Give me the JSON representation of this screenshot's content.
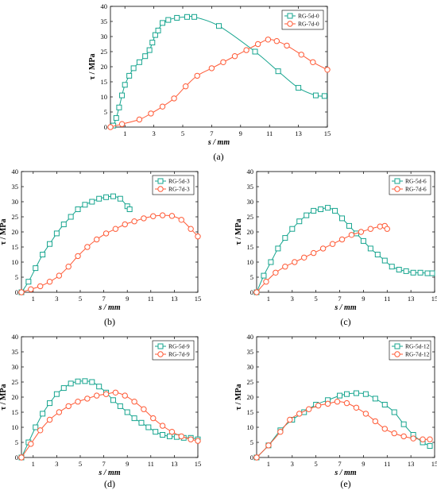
{
  "colors": {
    "green": "#17a58f",
    "red": "#ff5a36",
    "axis": "#000000"
  },
  "chart_data": [
    {
      "type": "line",
      "panel_label": "(a)",
      "xlabel": "s / mm",
      "ylabel": "τ / MPa",
      "xlim": [
        0,
        15
      ],
      "ylim": [
        0,
        40
      ],
      "xticks": [
        1,
        3,
        5,
        7,
        9,
        11,
        13,
        15
      ],
      "yticks": [
        0,
        5,
        10,
        15,
        20,
        25,
        30,
        35,
        40
      ],
      "legend_position": "top-right",
      "grid": false,
      "series": [
        {
          "name": "RG-5d-0",
          "marker": "square",
          "color": "#17a58f",
          "points": [
            [
              0.2,
              0.5
            ],
            [
              0.4,
              3
            ],
            [
              0.6,
              6.5
            ],
            [
              0.8,
              10.5
            ],
            [
              1.0,
              14
            ],
            [
              1.3,
              17
            ],
            [
              1.6,
              19.5
            ],
            [
              2.0,
              21.5
            ],
            [
              2.4,
              23.5
            ],
            [
              2.7,
              25.5
            ],
            [
              2.9,
              28
            ],
            [
              3.1,
              30.5
            ],
            [
              3.3,
              32
            ],
            [
              3.6,
              34.5
            ],
            [
              4.0,
              35.5
            ],
            [
              4.6,
              36.2
            ],
            [
              5.3,
              36.5
            ],
            [
              5.8,
              36.5
            ],
            [
              7.5,
              33.5
            ],
            [
              10.0,
              25
            ],
            [
              11.6,
              18.5
            ],
            [
              13.0,
              13
            ],
            [
              14.2,
              10.5
            ],
            [
              14.8,
              10.3
            ]
          ]
        },
        {
          "name": "RG-7d-0",
          "marker": "circle",
          "color": "#ff5a36",
          "points": [
            [
              0,
              0
            ],
            [
              0.8,
              1
            ],
            [
              2.0,
              2.5
            ],
            [
              2.8,
              4.5
            ],
            [
              3.6,
              6.8
            ],
            [
              4.4,
              9.5
            ],
            [
              5.2,
              13.5
            ],
            [
              6.0,
              17
            ],
            [
              7.0,
              19.5
            ],
            [
              7.8,
              21.5
            ],
            [
              8.6,
              23.5
            ],
            [
              9.4,
              25.5
            ],
            [
              10.2,
              27.5
            ],
            [
              10.9,
              29
            ],
            [
              11.5,
              28.5
            ],
            [
              12.2,
              27
            ],
            [
              13.2,
              24
            ],
            [
              14.0,
              21.5
            ],
            [
              15.0,
              19
            ]
          ]
        }
      ]
    },
    {
      "type": "line",
      "panel_label": "(b)",
      "xlabel": "s / mm",
      "ylabel": "τ / MPa",
      "xlim": [
        0,
        15
      ],
      "ylim": [
        0,
        40
      ],
      "xticks": [
        1,
        3,
        5,
        7,
        9,
        11,
        13,
        15
      ],
      "yticks": [
        0,
        5,
        10,
        15,
        20,
        25,
        30,
        35,
        40
      ],
      "legend_position": "top-right",
      "grid": false,
      "series": [
        {
          "name": "RG-5d-3",
          "marker": "square",
          "color": "#17a58f",
          "points": [
            [
              0,
              0
            ],
            [
              0.6,
              3.5
            ],
            [
              1.2,
              8
            ],
            [
              1.8,
              12.5
            ],
            [
              2.4,
              16
            ],
            [
              3.0,
              19.5
            ],
            [
              3.6,
              22.5
            ],
            [
              4.2,
              25
            ],
            [
              4.8,
              27.5
            ],
            [
              5.4,
              29
            ],
            [
              6.0,
              30
            ],
            [
              6.6,
              31
            ],
            [
              7.2,
              31.5
            ],
            [
              7.8,
              31.8
            ],
            [
              8.4,
              31
            ],
            [
              9.0,
              28.5
            ],
            [
              9.2,
              27.5
            ]
          ]
        },
        {
          "name": "RG-7d-3",
          "marker": "circle",
          "color": "#ff5a36",
          "points": [
            [
              0,
              0
            ],
            [
              0.8,
              1
            ],
            [
              1.6,
              2
            ],
            [
              2.4,
              3.5
            ],
            [
              3.2,
              5.5
            ],
            [
              4.0,
              8.5
            ],
            [
              4.8,
              12
            ],
            [
              5.6,
              15
            ],
            [
              6.4,
              17.5
            ],
            [
              7.2,
              19.5
            ],
            [
              8.0,
              21
            ],
            [
              8.8,
              22.5
            ],
            [
              9.6,
              23.5
            ],
            [
              10.4,
              24.5
            ],
            [
              11.2,
              25.2
            ],
            [
              12.0,
              25.5
            ],
            [
              12.8,
              25.3
            ],
            [
              13.6,
              24
            ],
            [
              14.4,
              21
            ],
            [
              15.0,
              18.5
            ]
          ]
        }
      ]
    },
    {
      "type": "line",
      "panel_label": "(c)",
      "xlabel": "s / mm",
      "ylabel": "τ / MPa",
      "xlim": [
        0,
        15
      ],
      "ylim": [
        0,
        40
      ],
      "xticks": [
        1,
        3,
        5,
        7,
        9,
        11,
        13,
        15
      ],
      "yticks": [
        0,
        5,
        10,
        15,
        20,
        25,
        30,
        35,
        40
      ],
      "legend_position": "top-right",
      "grid": false,
      "series": [
        {
          "name": "RG-5d-6",
          "marker": "square",
          "color": "#17a58f",
          "points": [
            [
              0,
              0
            ],
            [
              0.6,
              5.5
            ],
            [
              1.2,
              10
            ],
            [
              1.8,
              14.5
            ],
            [
              2.4,
              18
            ],
            [
              3.0,
              21
            ],
            [
              3.6,
              23.5
            ],
            [
              4.2,
              25.5
            ],
            [
              4.8,
              27
            ],
            [
              5.4,
              27.5
            ],
            [
              6.0,
              28
            ],
            [
              6.6,
              27
            ],
            [
              7.2,
              24.5
            ],
            [
              7.8,
              22
            ],
            [
              8.4,
              19.5
            ],
            [
              9.0,
              17
            ],
            [
              9.6,
              14.5
            ],
            [
              10.2,
              12.5
            ],
            [
              10.8,
              10.5
            ],
            [
              11.4,
              8.5
            ],
            [
              12.0,
              7.5
            ],
            [
              12.6,
              7
            ],
            [
              13.2,
              6.5
            ],
            [
              13.8,
              6.5
            ],
            [
              14.4,
              6.3
            ],
            [
              14.8,
              6.3
            ]
          ]
        },
        {
          "name": "RG-7d-6",
          "marker": "circle",
          "color": "#ff5a36",
          "points": [
            [
              0,
              0
            ],
            [
              0.8,
              3.5
            ],
            [
              1.6,
              6.5
            ],
            [
              2.4,
              8.5
            ],
            [
              3.2,
              10
            ],
            [
              4.0,
              11.5
            ],
            [
              4.8,
              13
            ],
            [
              5.6,
              14.5
            ],
            [
              6.4,
              16
            ],
            [
              7.2,
              17.5
            ],
            [
              8.0,
              19
            ],
            [
              8.8,
              20
            ],
            [
              9.6,
              21
            ],
            [
              10.4,
              21.8
            ],
            [
              10.8,
              22
            ],
            [
              11.0,
              21
            ]
          ]
        }
      ]
    },
    {
      "type": "line",
      "panel_label": "(d)",
      "xlabel": "s / mm",
      "ylabel": "τ / MPa",
      "xlim": [
        0,
        15
      ],
      "ylim": [
        0,
        40
      ],
      "xticks": [
        1,
        3,
        5,
        7,
        9,
        11,
        13,
        15
      ],
      "yticks": [
        0,
        5,
        10,
        15,
        20,
        25,
        30,
        35,
        40
      ],
      "legend_position": "top-right",
      "grid": false,
      "series": [
        {
          "name": "RG-5d-9",
          "marker": "square",
          "color": "#17a58f",
          "points": [
            [
              0,
              0
            ],
            [
              0.6,
              5
            ],
            [
              1.2,
              10
            ],
            [
              1.8,
              14.5
            ],
            [
              2.4,
              18
            ],
            [
              3.0,
              21
            ],
            [
              3.6,
              23
            ],
            [
              4.2,
              24.5
            ],
            [
              4.8,
              25.2
            ],
            [
              5.4,
              25.3
            ],
            [
              6.0,
              25
            ],
            [
              6.6,
              23.5
            ],
            [
              7.2,
              21.5
            ],
            [
              7.8,
              19
            ],
            [
              8.4,
              17
            ],
            [
              9.0,
              15
            ],
            [
              9.6,
              13
            ],
            [
              10.2,
              11.5
            ],
            [
              10.8,
              10
            ],
            [
              11.4,
              8.5
            ],
            [
              12.0,
              7.5
            ],
            [
              12.6,
              7
            ],
            [
              13.2,
              6.8
            ],
            [
              13.8,
              6.5
            ],
            [
              14.4,
              6.5
            ],
            [
              15.0,
              6
            ]
          ]
        },
        {
          "name": "RG-7d-9",
          "marker": "circle",
          "color": "#ff5a36",
          "points": [
            [
              0,
              0
            ],
            [
              0.8,
              4.5
            ],
            [
              1.6,
              9
            ],
            [
              2.4,
              12.5
            ],
            [
              3.2,
              15
            ],
            [
              4.0,
              17
            ],
            [
              4.8,
              18.5
            ],
            [
              5.6,
              19.5
            ],
            [
              6.4,
              20.5
            ],
            [
              7.2,
              21
            ],
            [
              8.0,
              21.5
            ],
            [
              8.8,
              20.5
            ],
            [
              9.6,
              18.5
            ],
            [
              10.4,
              16
            ],
            [
              11.2,
              13
            ],
            [
              12.0,
              10.5
            ],
            [
              12.8,
              8.5
            ],
            [
              13.6,
              7
            ],
            [
              14.4,
              6
            ],
            [
              15.0,
              5.5
            ]
          ]
        }
      ]
    },
    {
      "type": "line",
      "panel_label": "(e)",
      "xlabel": "s / mm",
      "ylabel": "τ / MPa",
      "xlim": [
        0,
        15
      ],
      "ylim": [
        0,
        40
      ],
      "xticks": [
        1,
        3,
        5,
        7,
        9,
        11,
        13,
        15
      ],
      "yticks": [
        0,
        5,
        10,
        15,
        20,
        25,
        30,
        35,
        40
      ],
      "legend_position": "top-right",
      "grid": false,
      "series": [
        {
          "name": "RG-5d-12",
          "marker": "square",
          "color": "#17a58f",
          "points": [
            [
              0,
              0
            ],
            [
              1.0,
              4
            ],
            [
              2.0,
              9
            ],
            [
              3.0,
              12.5
            ],
            [
              4.0,
              15
            ],
            [
              5.0,
              17.5
            ],
            [
              6.0,
              19
            ],
            [
              7.0,
              20.5
            ],
            [
              7.6,
              21
            ],
            [
              8.4,
              21.3
            ],
            [
              9.2,
              21
            ],
            [
              10.0,
              19.5
            ],
            [
              10.8,
              17.5
            ],
            [
              11.6,
              15
            ],
            [
              12.4,
              11
            ],
            [
              13.2,
              7.5
            ],
            [
              14.0,
              5
            ],
            [
              14.6,
              3.8
            ]
          ]
        },
        {
          "name": "RG-7d-12",
          "marker": "circle",
          "color": "#ff5a36",
          "points": [
            [
              0,
              0
            ],
            [
              1.0,
              4
            ],
            [
              2.0,
              8.5
            ],
            [
              2.8,
              12.5
            ],
            [
              3.6,
              14.5
            ],
            [
              4.4,
              16
            ],
            [
              5.2,
              17.2
            ],
            [
              6.0,
              17.8
            ],
            [
              6.8,
              18.5
            ],
            [
              7.6,
              18
            ],
            [
              8.4,
              16.5
            ],
            [
              9.2,
              14.5
            ],
            [
              10.0,
              12
            ],
            [
              10.8,
              9.5
            ],
            [
              11.6,
              8
            ],
            [
              12.4,
              7
            ],
            [
              13.2,
              6.3
            ],
            [
              14.0,
              6
            ],
            [
              14.6,
              6
            ]
          ]
        }
      ]
    }
  ]
}
